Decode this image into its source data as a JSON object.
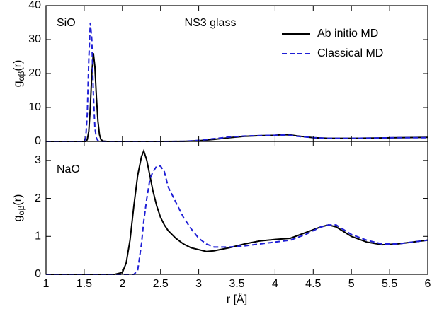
{
  "chart_data": [
    {
      "type": "line",
      "annotations": [
        "SiO",
        "NS3 glass"
      ],
      "ylabel": [
        "g",
        "αβ",
        "(r)"
      ],
      "legend": "upper right",
      "x": [
        1,
        1.5,
        1.52,
        1.54,
        1.56,
        1.58,
        1.6,
        1.62,
        1.64,
        1.66,
        1.68,
        1.7,
        1.72,
        1.75,
        1.8,
        2,
        2.5,
        2.8,
        3,
        3.2,
        3.4,
        3.6,
        3.8,
        4,
        4.1,
        4.2,
        4.3,
        4.5,
        4.7,
        5,
        5.3,
        5.6,
        6
      ],
      "series": [
        {
          "name": "Ab initio MD",
          "color": "#000000",
          "linestyle": "solid",
          "values": [
            0,
            0,
            0,
            0.5,
            3,
            10,
            20,
            26,
            22,
            13,
            6,
            2,
            0.5,
            0.1,
            0,
            0,
            0,
            0.02,
            0.2,
            0.6,
            1.1,
            1.5,
            1.7,
            1.8,
            2.0,
            1.9,
            1.6,
            1.1,
            0.9,
            0.9,
            1.0,
            1.1,
            1.2
          ]
        },
        {
          "name": "Classical MD",
          "color": "#1f1fd6",
          "linestyle": "dashed",
          "values": [
            0,
            0,
            1,
            8,
            24,
            35,
            30,
            14,
            4,
            1,
            0.2,
            0,
            0,
            0,
            0,
            0,
            0,
            0.02,
            0.3,
            0.8,
            1.3,
            1.6,
            1.7,
            1.8,
            1.9,
            1.8,
            1.5,
            1.1,
            0.9,
            0.9,
            1.0,
            1.1,
            1.1
          ]
        }
      ],
      "xlim": [
        1,
        6
      ],
      "xticks": [
        1,
        1.5,
        2,
        2.5,
        3,
        3.5,
        4,
        4.5,
        5,
        5.5,
        6
      ],
      "ylim": [
        0,
        40
      ],
      "yticks": [
        0,
        10,
        20,
        30,
        40
      ]
    },
    {
      "type": "line",
      "annotations": [
        "NaO"
      ],
      "ylabel": [
        "g",
        "αβ",
        "(r)"
      ],
      "xlabel": "r [Å]",
      "x": [
        1,
        1.9,
        2.0,
        2.05,
        2.1,
        2.15,
        2.2,
        2.25,
        2.28,
        2.32,
        2.36,
        2.4,
        2.45,
        2.5,
        2.55,
        2.6,
        2.7,
        2.8,
        2.9,
        3.0,
        3.1,
        3.2,
        3.4,
        3.6,
        3.8,
        4.0,
        4.2,
        4.4,
        4.6,
        4.7,
        4.8,
        5.0,
        5.2,
        5.4,
        5.6,
        5.8,
        6
      ],
      "series": [
        {
          "color": "#000000",
          "linestyle": "solid",
          "values": [
            0,
            0,
            0.05,
            0.3,
            0.9,
            1.8,
            2.6,
            3.1,
            3.25,
            3.0,
            2.6,
            2.2,
            1.8,
            1.5,
            1.3,
            1.15,
            0.95,
            0.8,
            0.7,
            0.65,
            0.6,
            0.62,
            0.7,
            0.8,
            0.88,
            0.92,
            0.95,
            1.1,
            1.25,
            1.3,
            1.25,
            1.0,
            0.85,
            0.78,
            0.8,
            0.85,
            0.9
          ]
        },
        {
          "color": "#1f1fd6",
          "linestyle": "dashed",
          "values": [
            0,
            0,
            0,
            0,
            0,
            0,
            0.1,
            0.8,
            1.4,
            2.0,
            2.5,
            2.7,
            2.85,
            2.85,
            2.7,
            2.3,
            1.9,
            1.5,
            1.2,
            0.95,
            0.8,
            0.72,
            0.72,
            0.75,
            0.8,
            0.85,
            0.9,
            1.05,
            1.25,
            1.3,
            1.3,
            1.05,
            0.9,
            0.8,
            0.8,
            0.85,
            0.9
          ]
        }
      ],
      "xlim": [
        1,
        6
      ],
      "xticks": [
        1,
        1.5,
        2,
        2.5,
        3,
        3.5,
        4,
        4.5,
        5,
        5.5,
        6
      ],
      "ylim": [
        0,
        3.5
      ],
      "yticks": [
        0,
        1,
        2,
        3
      ]
    }
  ]
}
